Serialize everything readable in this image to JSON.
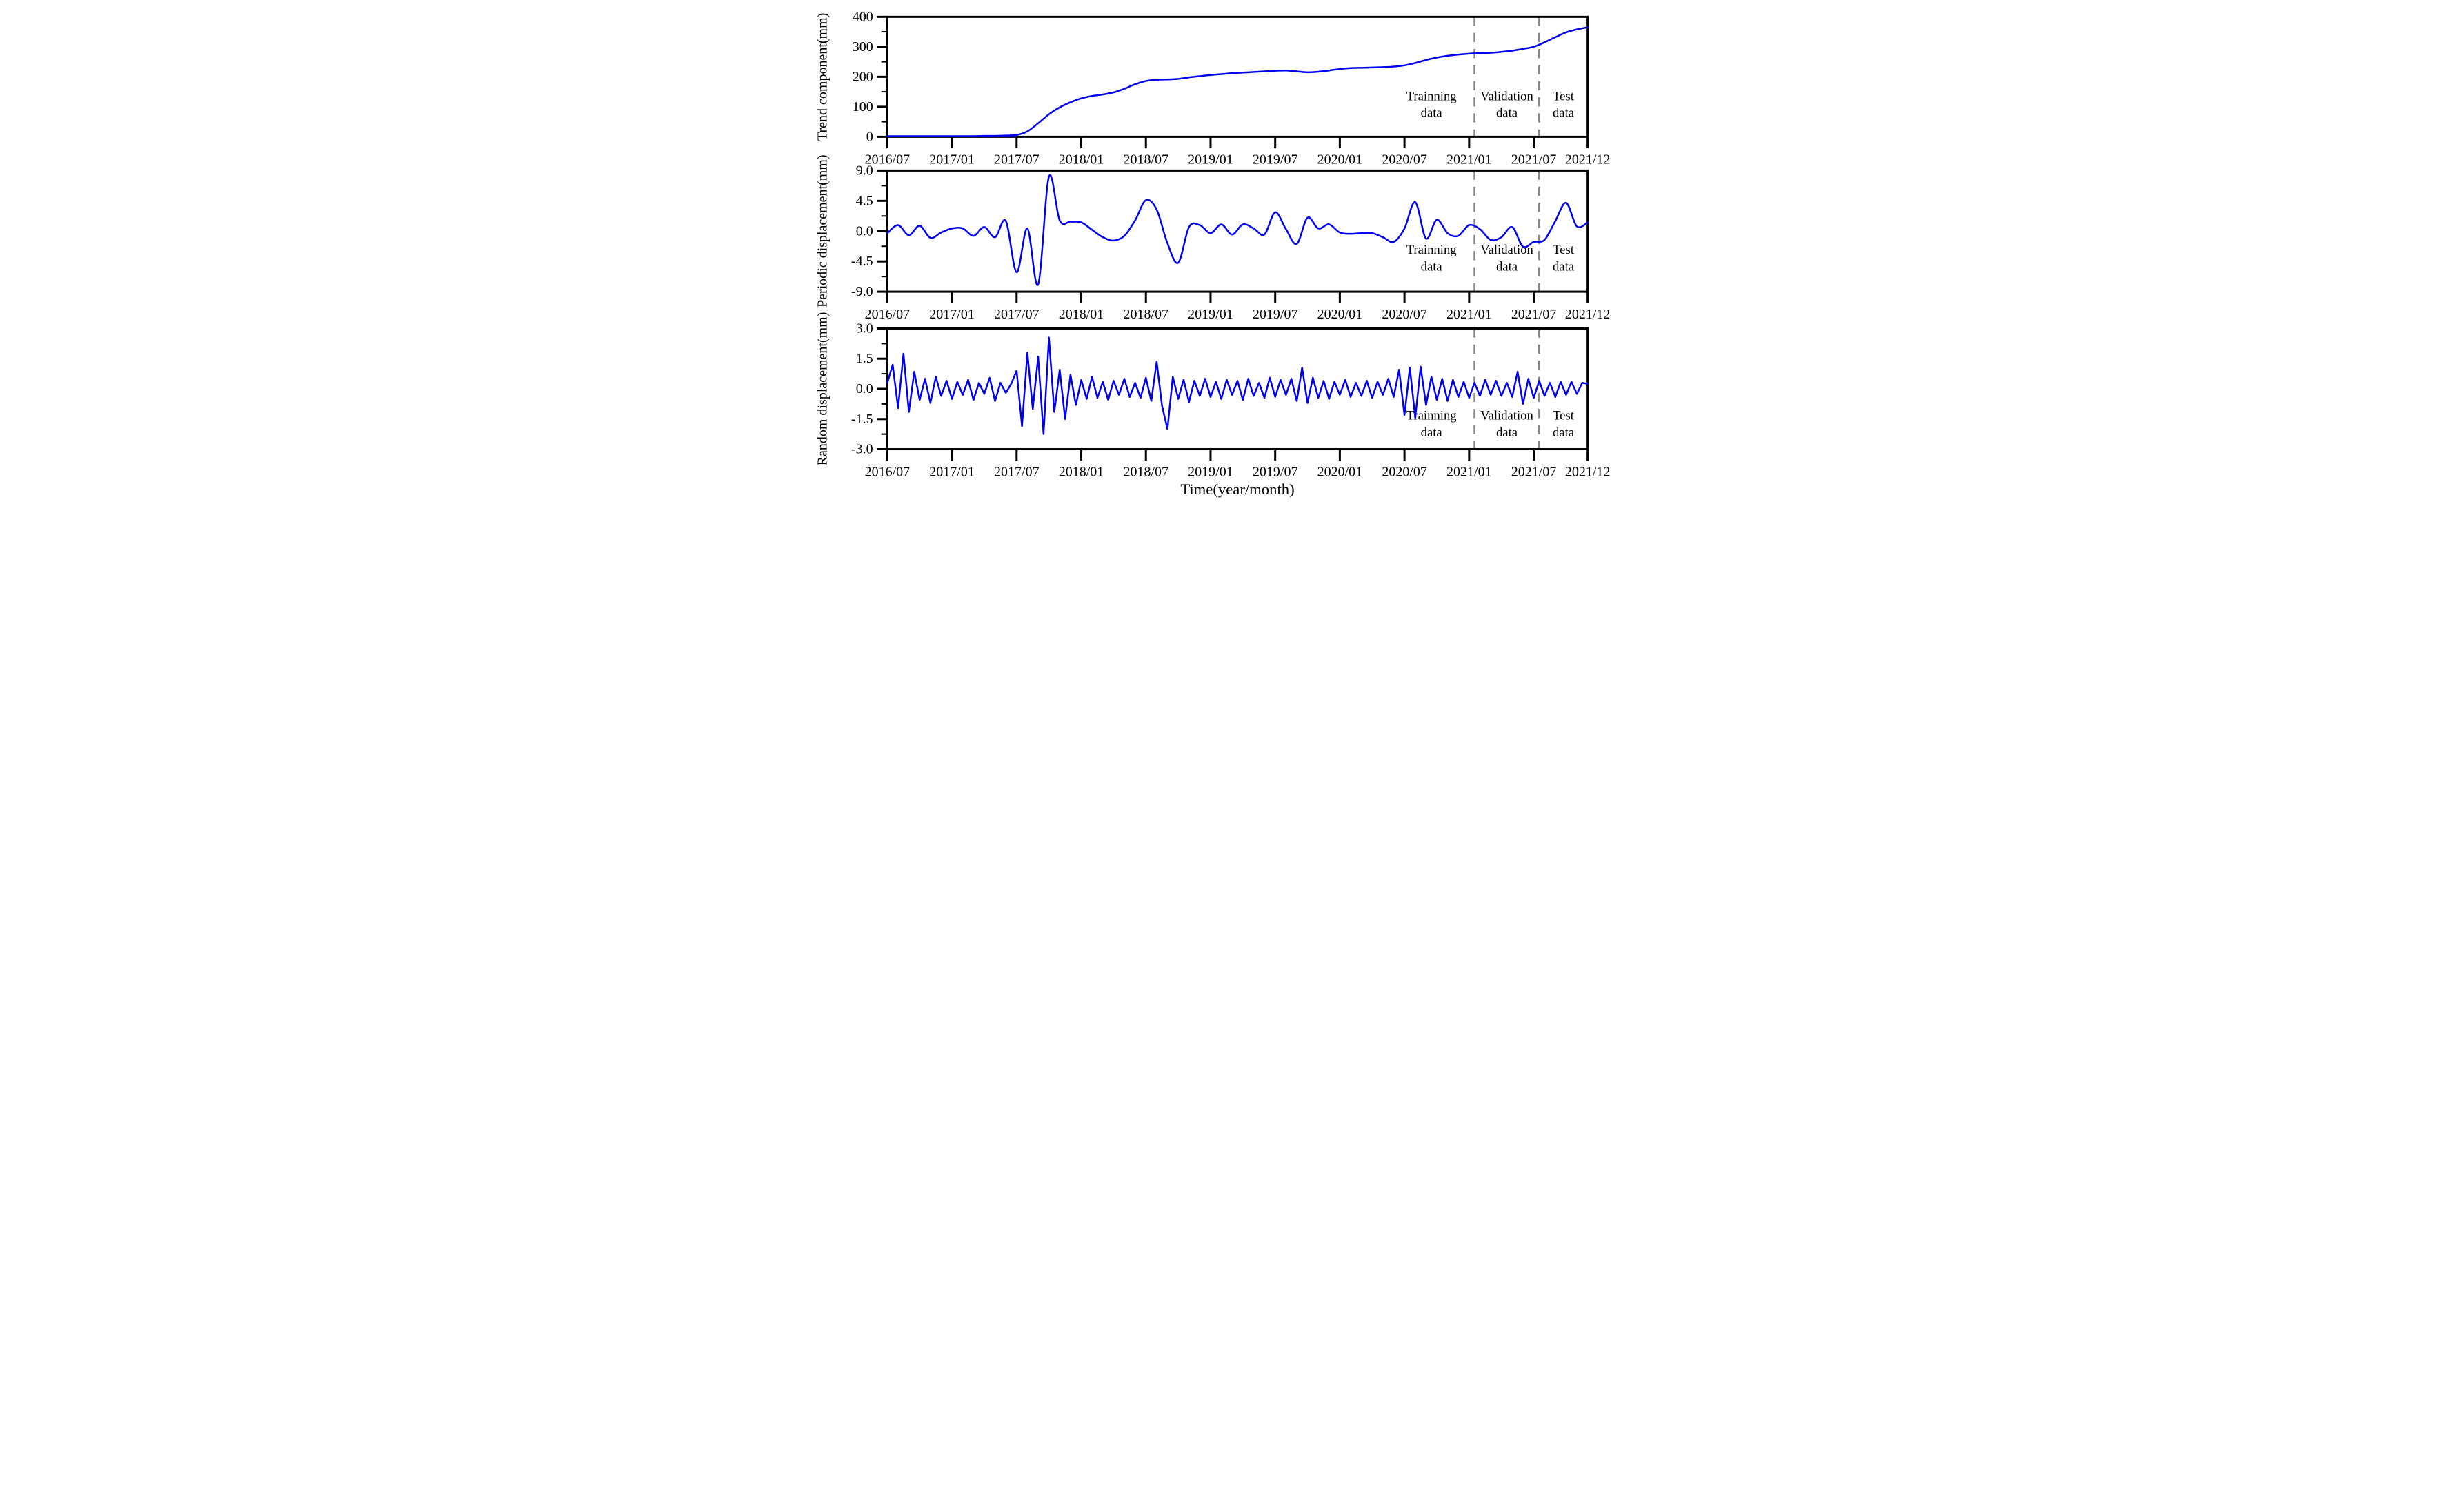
{
  "figure": {
    "xlabel": "Time(year/month)",
    "line_color": "#0000ee",
    "split_line_color": "#888888",
    "axis_color": "#000000",
    "annotation_lines": [
      "Trainning",
      "Validation",
      "Test",
      "data"
    ]
  },
  "chart_data": {
    "type": "line",
    "xlabel": "Time(year/month)",
    "x_tick_labels": [
      "2016/07",
      "2017/01",
      "2017/07",
      "2018/01",
      "2018/07",
      "2019/01",
      "2019/07",
      "2020/01",
      "2020/07",
      "2021/01",
      "2021/07",
      "2021/12"
    ],
    "x_tick_months": [
      0,
      6,
      12,
      18,
      24,
      30,
      36,
      42,
      48,
      54,
      60,
      65
    ],
    "x_range_months": [
      0,
      65
    ],
    "split_lines_months": [
      54.5,
      60.5
    ],
    "regions": [
      {
        "line1": "Trainning",
        "line2": "data",
        "center_month": 50.5
      },
      {
        "line1": "Validation",
        "line2": "data",
        "center_month": 57.5
      },
      {
        "line1": "Test",
        "line2": "data",
        "center_month": 62.75
      }
    ],
    "panels": [
      {
        "name": "trend",
        "ylabel": "Trend component(mm)",
        "ylim": [
          0,
          400
        ],
        "yticks": [
          0,
          100,
          200,
          300,
          400
        ],
        "ytick_labels": [
          "0",
          "100",
          "200",
          "300",
          "400"
        ],
        "minor_ytick_step": 50,
        "smooth": true,
        "x_start_month": 0,
        "x_end_month": 65,
        "values": [
          2,
          2,
          2,
          2,
          2,
          2,
          2,
          2,
          2,
          3,
          3,
          4,
          6,
          18,
          45,
          75,
          98,
          115,
          128,
          136,
          141,
          148,
          160,
          175,
          186,
          190,
          191,
          193,
          198,
          202,
          206,
          209,
          212,
          214,
          216,
          218,
          220,
          221,
          218,
          215,
          217,
          221,
          226,
          229,
          230,
          231,
          232,
          234,
          238,
          246,
          256,
          264,
          270,
          274,
          277,
          279,
          280,
          283,
          287,
          293,
          300,
          315,
          332,
          348,
          358,
          365
        ]
      },
      {
        "name": "periodic",
        "ylabel": "Periodic displacement(mm)",
        "ylim": [
          -9,
          9
        ],
        "yticks": [
          -9,
          -4.5,
          0,
          4.5,
          9
        ],
        "ytick_labels": [
          "-9.0",
          "-4.5",
          "0.0",
          "4.5",
          "9.0"
        ],
        "minor_ytick_step": 2.25,
        "smooth": true,
        "x_start_month": 0,
        "x_end_month": 65,
        "values": [
          -0.3,
          0.9,
          -0.6,
          0.8,
          -1.0,
          -0.2,
          0.4,
          0.4,
          -0.7,
          0.6,
          -0.9,
          1.5,
          -6.1,
          0.4,
          -7.9,
          8.1,
          1.6,
          1.4,
          1.3,
          0.2,
          -0.9,
          -1.4,
          -0.7,
          1.6,
          4.6,
          3.2,
          -1.8,
          -4.7,
          0.6,
          0.9,
          -0.3,
          1.0,
          -0.5,
          1.0,
          0.4,
          -0.5,
          2.8,
          0.3,
          -1.9,
          2.0,
          0.4,
          1.0,
          -0.2,
          -0.4,
          -0.3,
          -0.3,
          -0.9,
          -1.6,
          0.4,
          4.3,
          -1.1,
          1.7,
          -0.3,
          -0.7,
          0.9,
          0.3,
          -1.3,
          -0.9,
          0.6,
          -2.3,
          -1.6,
          -1.3,
          1.5,
          4.2,
          0.7,
          1.3
        ]
      },
      {
        "name": "random",
        "ylabel": "Random displacement(mm)",
        "ylim": [
          -3,
          3
        ],
        "yticks": [
          -3,
          -1.5,
          0,
          1.5,
          3
        ],
        "ytick_labels": [
          "-3.0",
          "-1.5",
          "0.0",
          "1.5",
          "3.0"
        ],
        "minor_ytick_step": 0.75,
        "smooth": false,
        "x_start_month": 0,
        "x_end_month": 65,
        "values": [
          0.3,
          1.2,
          -0.95,
          1.75,
          -1.15,
          0.85,
          -0.55,
          0.5,
          -0.7,
          0.6,
          -0.35,
          0.4,
          -0.5,
          0.35,
          -0.3,
          0.45,
          -0.55,
          0.3,
          -0.25,
          0.55,
          -0.6,
          0.3,
          -0.2,
          0.25,
          0.9,
          -1.85,
          1.8,
          -1.0,
          1.6,
          -2.25,
          2.55,
          -1.15,
          0.95,
          -1.5,
          0.7,
          -0.8,
          0.45,
          -0.5,
          0.6,
          -0.45,
          0.35,
          -0.55,
          0.4,
          -0.3,
          0.5,
          -0.4,
          0.3,
          -0.45,
          0.55,
          -0.6,
          1.35,
          -0.85,
          -2.0,
          0.6,
          -0.5,
          0.45,
          -0.65,
          0.4,
          -0.35,
          0.5,
          -0.4,
          0.35,
          -0.5,
          0.45,
          -0.3,
          0.4,
          -0.55,
          0.5,
          -0.35,
          0.3,
          -0.45,
          0.55,
          -0.4,
          0.45,
          -0.3,
          0.5,
          -0.6,
          1.05,
          -0.7,
          0.55,
          -0.45,
          0.4,
          -0.5,
          0.35,
          -0.3,
          0.45,
          -0.4,
          0.3,
          -0.35,
          0.4,
          -0.45,
          0.35,
          -0.3,
          0.5,
          -0.4,
          0.95,
          -1.3,
          1.05,
          -1.45,
          1.1,
          -0.8,
          0.6,
          -0.55,
          0.5,
          -0.6,
          0.45,
          -0.4,
          0.35,
          -0.45,
          0.3,
          -0.35,
          0.45,
          -0.3,
          0.4,
          -0.35,
          0.3,
          -0.4,
          0.85,
          -0.75,
          0.5,
          -0.45,
          0.4,
          -0.35,
          0.3,
          -0.4,
          0.35,
          -0.3,
          0.35,
          -0.25,
          0.3,
          0.25
        ]
      }
    ]
  }
}
